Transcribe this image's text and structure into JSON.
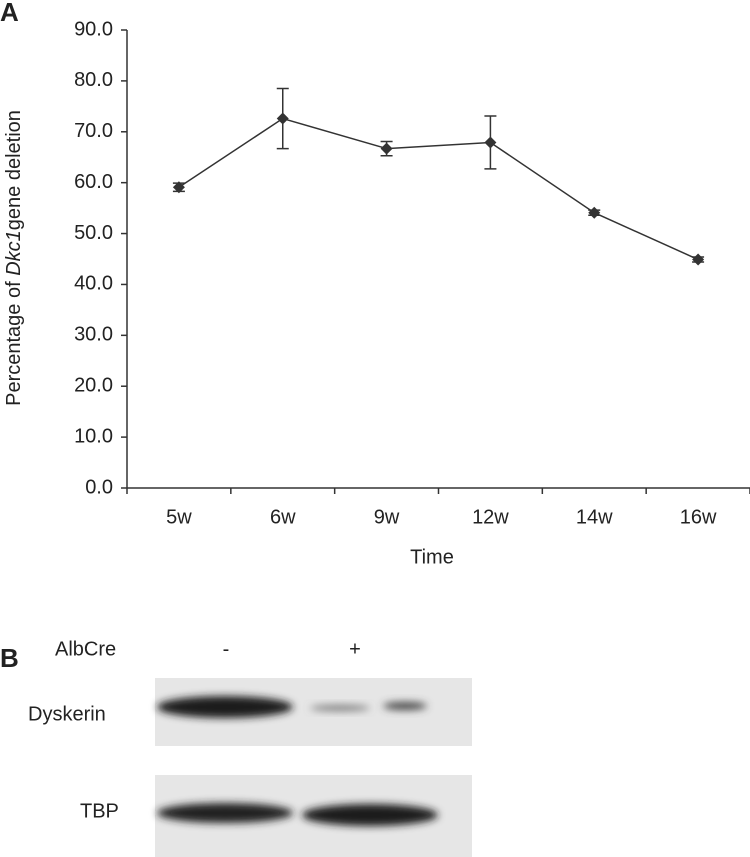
{
  "chart_data": {
    "type": "line",
    "panel_label": "A",
    "x_label": "Time",
    "y_label_parts": [
      "Percentage of ",
      "Dkc1",
      "gene deletion"
    ],
    "categories": [
      "5w",
      "6w",
      "9w",
      "12w",
      "14w",
      "16w"
    ],
    "values": [
      59.1,
      72.6,
      66.7,
      67.9,
      54.1,
      44.9
    ],
    "errors": [
      0.8,
      5.9,
      1.4,
      5.2,
      0.5,
      0.5
    ],
    "color": "#333333",
    "ylim": [
      0,
      90
    ],
    "yticks": [
      {
        "value": 0,
        "label": "0.0"
      },
      {
        "value": 10,
        "label": "10.0"
      },
      {
        "value": 20,
        "label": "20.0"
      },
      {
        "value": 30,
        "label": "30.0"
      },
      {
        "value": 40,
        "label": "40.0"
      },
      {
        "value": 50,
        "label": "50.0"
      },
      {
        "value": 60,
        "label": "60.0"
      },
      {
        "value": 70,
        "label": "70.0"
      },
      {
        "value": 80,
        "label": "80.0"
      },
      {
        "value": 90,
        "label": "90.0"
      }
    ],
    "grid": false
  },
  "blot": {
    "panel_label": "B",
    "condition_label": "AlbCre",
    "lanes": [
      "-",
      "+"
    ],
    "rows": [
      "Dyskerin",
      "TBP"
    ]
  }
}
